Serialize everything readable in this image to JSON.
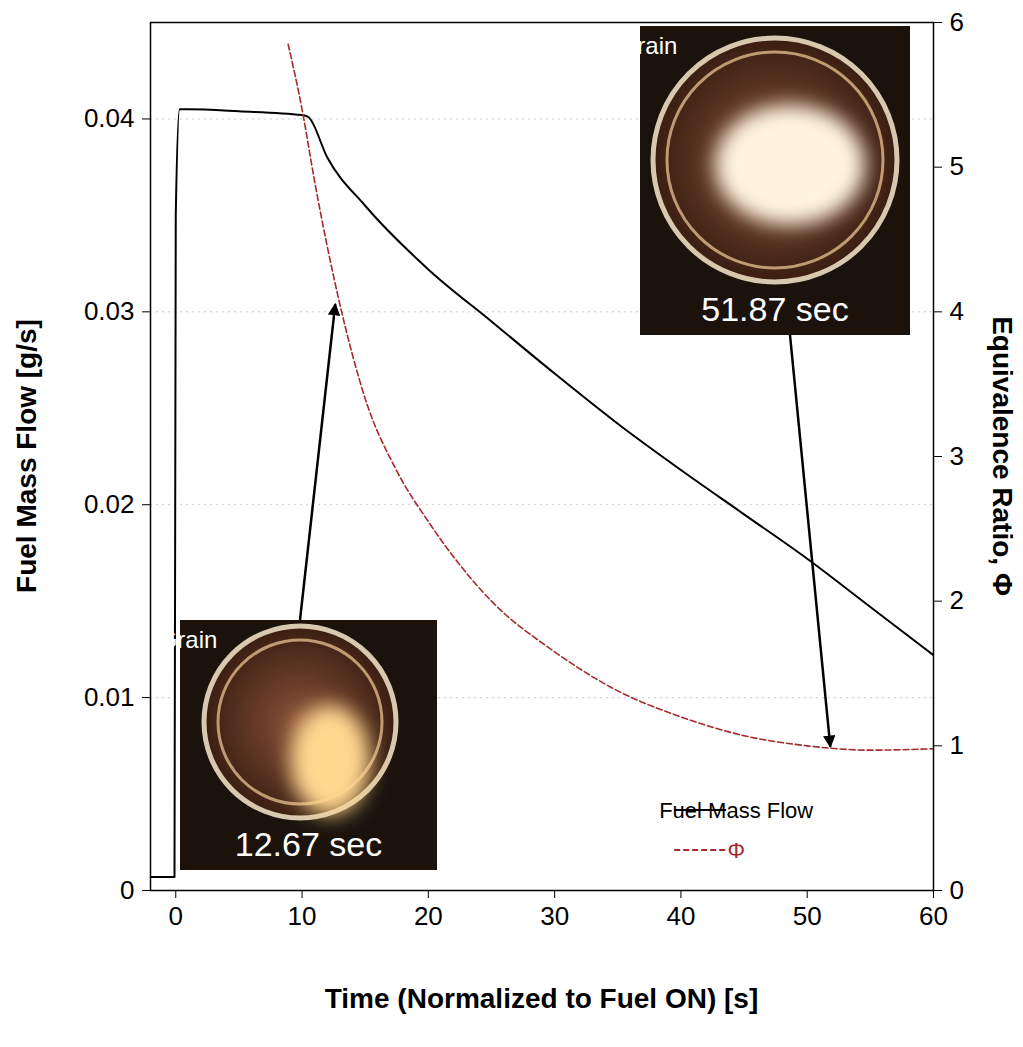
{
  "chart_data": {
    "type": "line",
    "x_label": "Time (Normalized to Fuel ON) [s]",
    "y_label": "Fuel Mass Flow [g/s]",
    "y2_label": "Equivalence Ratio, Φ",
    "xlim": [
      -2,
      60
    ],
    "xticks": [
      0,
      10,
      20,
      30,
      40,
      50,
      60
    ],
    "ylim": [
      0,
      0.045
    ],
    "yticks": [
      0,
      0.01,
      0.02,
      0.03,
      0.04
    ],
    "y2lim": [
      0,
      6
    ],
    "y2ticks": [
      0,
      1,
      2,
      3,
      4,
      5,
      6
    ],
    "grid": true,
    "legend": "bottom-right",
    "series": [
      {
        "name": "Fuel Mass Flow",
        "color": "#000000",
        "line_style": "solid",
        "axis": "y",
        "x": [
          -2,
          -0.1,
          0,
          0.3,
          1,
          5,
          10,
          10.5,
          12,
          15,
          20,
          25,
          30,
          35,
          40,
          45,
          50,
          55,
          60
        ],
        "values": [
          0.0007,
          0.0007,
          0.035,
          0.0405,
          0.0405,
          0.0404,
          0.0402,
          0.0401,
          0.038,
          0.0355,
          0.0322,
          0.0295,
          0.0268,
          0.0242,
          0.0218,
          0.0195,
          0.0172,
          0.0147,
          0.0122
        ]
      },
      {
        "name": "Φ",
        "color": "#a52a2a",
        "line_style": "dashed",
        "axis": "y2",
        "x": [
          8.9,
          10,
          11,
          12,
          13,
          14,
          15,
          17.5,
          20,
          25,
          30,
          35,
          40,
          45,
          50,
          55,
          60
        ],
        "values": [
          5.85,
          5.4,
          4.9,
          4.45,
          4.05,
          3.7,
          3.4,
          2.9,
          2.55,
          2.0,
          1.65,
          1.38,
          1.2,
          1.07,
          1.0,
          0.97,
          0.98
        ]
      }
    ],
    "annotations": [
      {
        "label": "Grain",
        "text": "12.67 sec",
        "x": 12.67,
        "y": 4.05,
        "axis": "y2"
      },
      {
        "label": "Grain",
        "text": "51.87 sec",
        "x": 51.87,
        "y": 0.99,
        "axis": "y2"
      }
    ]
  }
}
